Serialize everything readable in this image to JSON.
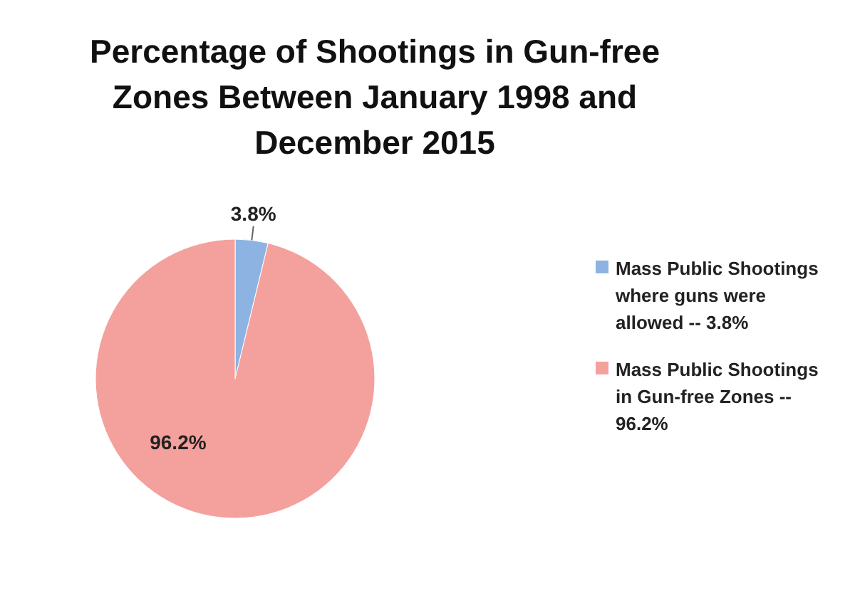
{
  "chart_data": {
    "type": "pie",
    "title": "Percentage of Shootings in Gun-free Zones Between January 1998 and December 2015",
    "categories": [
      "Mass Public Shootings where guns were allowed -- 3.8%",
      "Mass Public Shootings in Gun-free Zones -- 96.2%"
    ],
    "values": [
      3.8,
      96.2
    ],
    "colors": [
      "#8db3e2",
      "#f4a19d"
    ],
    "value_labels": [
      "3.8%",
      "96.2%"
    ],
    "legend": "right"
  }
}
